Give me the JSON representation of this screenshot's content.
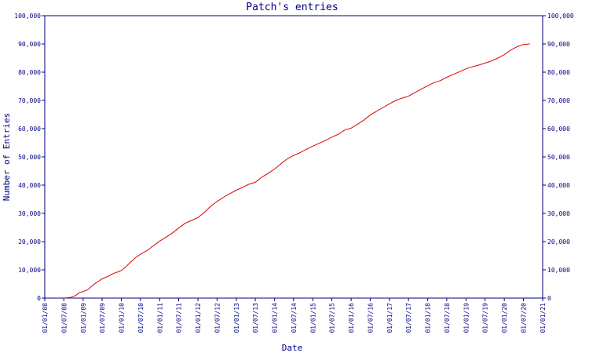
{
  "chart_data": {
    "type": "line",
    "title": "Patch's entries",
    "xlabel": "Date",
    "ylabel": "Number of Entries",
    "x_ticks": [
      "01/01/08",
      "01/07/08",
      "01/01/09",
      "01/07/09",
      "01/01/10",
      "01/07/10",
      "01/01/11",
      "01/07/11",
      "01/01/12",
      "01/07/12",
      "01/01/13",
      "01/07/13",
      "01/01/14",
      "01/07/14",
      "01/01/15",
      "01/07/15",
      "01/01/16",
      "01/07/16",
      "01/01/17",
      "01/07/17",
      "01/01/18",
      "01/07/18",
      "01/01/19",
      "01/07/19",
      "01/01/20",
      "01/07/20",
      "01/01/21"
    ],
    "y_ticks": [
      "0",
      "10,000",
      "20,000",
      "30,000",
      "40,000",
      "50,000",
      "60,000",
      "70,000",
      "80,000",
      "90,000",
      "100,000"
    ],
    "ylim": [
      0,
      100000
    ],
    "xlim": [
      "2008-01-01",
      "2021-01-01"
    ],
    "grid": false,
    "series": [
      {
        "color": "#dd0000",
        "x": [
          "2008-07-01",
          "2008-09-01",
          "2008-10-15",
          "2008-12-01",
          "2009-01-01",
          "2009-02-15",
          "2009-04-01",
          "2009-05-15",
          "2009-07-01",
          "2009-09-01",
          "2009-10-15",
          "2009-12-01",
          "2010-01-01",
          "2010-02-15",
          "2010-04-01",
          "2010-05-15",
          "2010-07-01",
          "2010-09-01",
          "2010-11-01",
          "2011-01-01",
          "2011-03-01",
          "2011-05-01",
          "2011-07-01",
          "2011-09-01",
          "2011-11-01",
          "2012-01-01",
          "2012-03-01",
          "2012-05-01",
          "2012-07-01",
          "2012-09-01",
          "2012-11-01",
          "2013-01-01",
          "2013-03-01",
          "2013-05-01",
          "2013-07-01",
          "2013-09-01",
          "2013-11-01",
          "2014-01-01",
          "2014-03-01",
          "2014-05-01",
          "2014-07-01",
          "2014-09-01",
          "2014-11-01",
          "2015-01-01",
          "2015-03-01",
          "2015-05-01",
          "2015-07-01",
          "2015-09-01",
          "2015-11-01",
          "2016-01-01",
          "2016-03-01",
          "2016-05-01",
          "2016-07-01",
          "2016-09-01",
          "2016-11-01",
          "2017-01-01",
          "2017-03-01",
          "2017-05-01",
          "2017-07-01",
          "2017-09-01",
          "2017-11-01",
          "2018-01-01",
          "2018-03-01",
          "2018-05-01",
          "2018-07-01",
          "2018-09-01",
          "2018-11-01",
          "2019-01-01",
          "2019-03-01",
          "2019-05-01",
          "2019-07-01",
          "2019-09-01",
          "2019-11-01",
          "2020-01-01",
          "2020-03-01",
          "2020-05-01",
          "2020-07-01",
          "2020-09-01"
        ],
        "y": [
          0,
          200,
          800,
          2000,
          2300,
          3000,
          4500,
          5700,
          6800,
          7800,
          8700,
          9300,
          9800,
          11200,
          12800,
          14300,
          15500,
          16800,
          18500,
          20200,
          21500,
          23000,
          24800,
          26500,
          27500,
          28500,
          30300,
          32500,
          34200,
          35700,
          37000,
          38200,
          39200,
          40300,
          41000,
          42800,
          44200,
          45700,
          47500,
          49300,
          50500,
          51500,
          52700,
          53800,
          54800,
          55800,
          57000,
          58000,
          59500,
          60200,
          61500,
          63000,
          64800,
          66200,
          67500,
          68800,
          70000,
          70800,
          71500,
          72800,
          74000,
          75200,
          76300,
          77000,
          78200,
          79200,
          80200,
          81200,
          81900,
          82500,
          83200,
          84000,
          85000,
          86200,
          87800,
          89000,
          89800,
          90000
        ]
      }
    ]
  }
}
